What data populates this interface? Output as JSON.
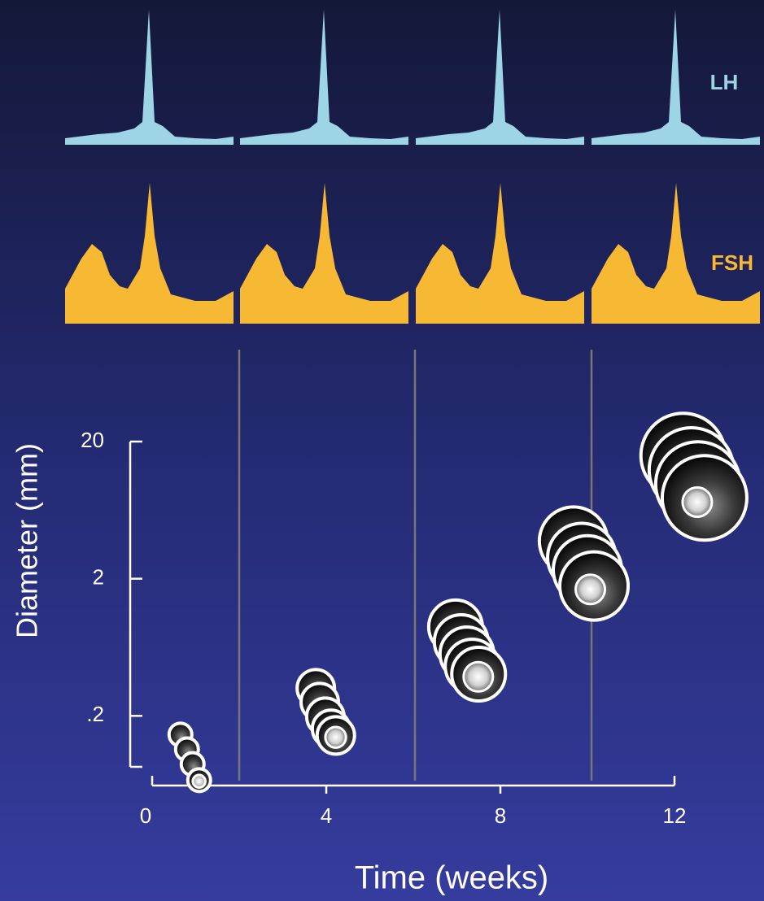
{
  "chart_data": {
    "type": "bubble",
    "hormone_labels": [
      "LH",
      "FSH"
    ],
    "x_label": "Time (weeks)",
    "y_label": "Diameter (mm)",
    "log_y": true,
    "x": [
      0.65,
      0.8,
      0.93,
      1.08,
      3.76,
      3.85,
      3.98,
      4.11,
      4.22,
      6.97,
      7.1,
      7.23,
      7.35,
      7.5,
      9.68,
      9.87,
      10.0,
      10.15,
      12.2,
      12.39,
      12.54,
      12.69
    ],
    "values": [
      0.146,
      0.114,
      0.089,
      0.068,
      0.318,
      0.252,
      0.197,
      0.161,
      0.144,
      0.891,
      0.696,
      0.566,
      0.461,
      0.403,
      3.76,
      2.86,
      2.32,
      1.77,
      15.8,
      12.4,
      9.8,
      7.77
    ],
    "sizes": [
      14,
      14,
      14,
      14,
      23,
      23,
      23,
      23,
      23,
      33,
      33,
      33,
      33,
      33,
      42,
      42,
      42,
      42,
      52,
      52,
      52,
      52
    ],
    "xlim": [
      0,
      12
    ],
    "xticks": [
      0,
      4,
      8,
      12
    ],
    "ylim": [
      0.085,
      20
    ],
    "yticks": [
      {
        "value": 0.2,
        "label": ".2"
      },
      2,
      20
    ]
  }
}
